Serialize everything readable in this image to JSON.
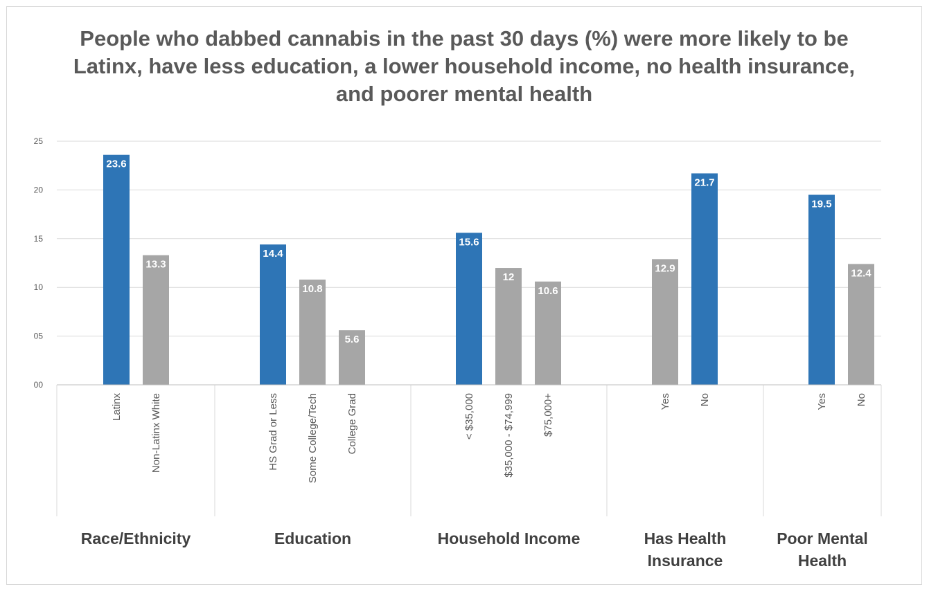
{
  "chart_data": {
    "type": "bar",
    "title": "People who dabbed cannabis in the past 30 days (%) were more likely to be Latinx, have less education, a lower household income, no health insurance, and poorer mental health",
    "ylim": [
      0,
      25
    ],
    "yticks": [
      "00",
      "05",
      "10",
      "15",
      "20",
      "25"
    ],
    "grid": true,
    "colors": {
      "highlight": "#2e75b6",
      "other": "#a6a6a6"
    },
    "groups": [
      {
        "name": "Race/Ethnicity",
        "bars": [
          {
            "label": "Latinx",
            "value": 23.6,
            "data_label": "23.6",
            "highlight": true
          },
          {
            "label": "Non-Latinx White",
            "value": 13.3,
            "data_label": "13.3",
            "highlight": false
          }
        ]
      },
      {
        "name": "Education",
        "bars": [
          {
            "label": "HS Grad or Less",
            "value": 14.4,
            "data_label": "14.4",
            "highlight": true
          },
          {
            "label": "Some College/Tech",
            "value": 10.8,
            "data_label": "10.8",
            "highlight": false
          },
          {
            "label": "College Grad",
            "value": 5.6,
            "data_label": "5.6",
            "highlight": false
          }
        ]
      },
      {
        "name": "Household Income",
        "bars": [
          {
            "label": "< $35,000",
            "value": 15.6,
            "data_label": "15.6",
            "highlight": true
          },
          {
            "label": "$35,000 - $74,999",
            "value": 12,
            "data_label": "12",
            "highlight": false
          },
          {
            "label": "$75,000+",
            "value": 10.6,
            "data_label": "10.6",
            "highlight": false
          }
        ]
      },
      {
        "name": "Has Health Insurance",
        "bars": [
          {
            "label": "Yes",
            "value": 12.9,
            "data_label": "12.9",
            "highlight": false
          },
          {
            "label": "No",
            "value": 21.7,
            "data_label": "21.7",
            "highlight": true
          }
        ]
      },
      {
        "name": "Poor Mental Health",
        "bars": [
          {
            "label": "Yes",
            "value": 19.5,
            "data_label": "19.5",
            "highlight": true
          },
          {
            "label": "No",
            "value": 12.4,
            "data_label": "12.4",
            "highlight": false
          }
        ]
      }
    ]
  }
}
